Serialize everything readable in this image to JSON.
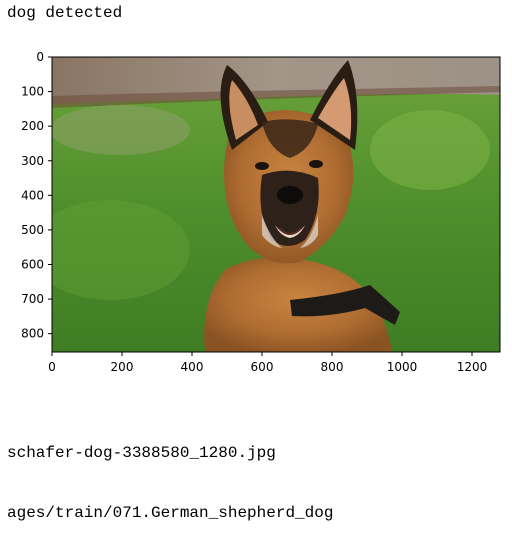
{
  "output": {
    "status_line": "dog detected",
    "filename_line": "schafer-dog-3388580_1280.jpg",
    "path_line": "ages/train/071.German_shepherd_dog"
  },
  "plot": {
    "x_ticks": [
      0,
      200,
      400,
      600,
      800,
      1000,
      1200
    ],
    "y_ticks": [
      0,
      100,
      200,
      300,
      400,
      500,
      600,
      700,
      800
    ],
    "x_range": [
      0,
      1280
    ],
    "y_range": [
      0,
      853
    ],
    "image_subject": "german-shepherd-dog",
    "colors": {
      "grass": "#4f8f2c",
      "grass_light": "#7fb548",
      "fence": "#8d7c6a",
      "dog_tan": "#b8763a",
      "dog_dark": "#2a1d14",
      "axis": "#000000"
    }
  }
}
